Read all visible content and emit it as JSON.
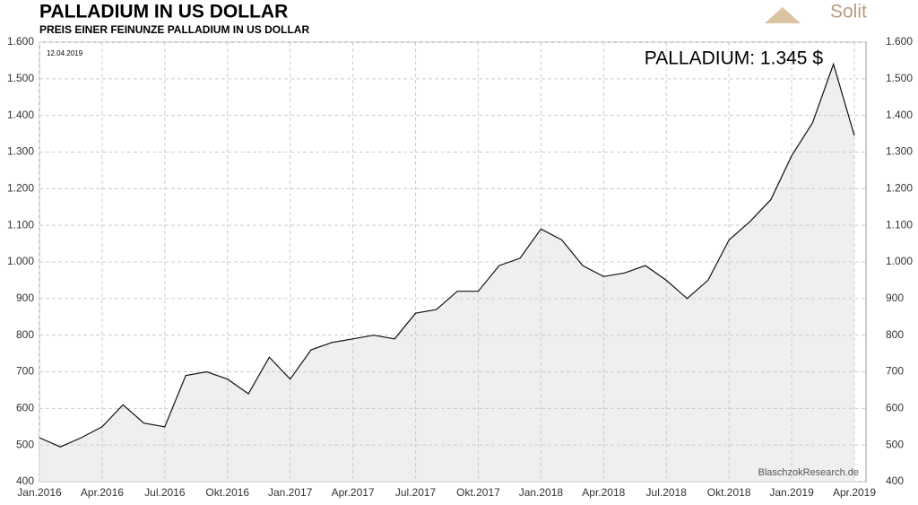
{
  "chart_data": {
    "type": "line",
    "title": "PALLADIUM  IN  US DOLLAR",
    "subtitle": "PREIS  EINER  FEINUNZE  PALLADIUM  IN  US DOLLAR",
    "date_note": "12.04.2019",
    "annotation": "PALLADIUM: 1.345 $",
    "source": "BlaschzokResearch.de",
    "logo": "Solit",
    "color": "#111111",
    "area_color": "#efefef",
    "grid": true,
    "x": [
      "2016-01",
      "2016-02",
      "2016-03",
      "2016-04",
      "2016-05",
      "2016-06",
      "2016-07",
      "2016-08",
      "2016-09",
      "2016-10",
      "2016-11",
      "2016-12",
      "2017-01",
      "2017-02",
      "2017-03",
      "2017-04",
      "2017-05",
      "2017-06",
      "2017-07",
      "2017-08",
      "2017-09",
      "2017-10",
      "2017-11",
      "2017-12",
      "2018-01",
      "2018-02",
      "2018-03",
      "2018-04",
      "2018-05",
      "2018-06",
      "2018-07",
      "2018-08",
      "2018-09",
      "2018-10",
      "2018-11",
      "2018-12",
      "2019-01",
      "2019-02",
      "2019-03",
      "2019-04"
    ],
    "values": [
      520,
      495,
      520,
      550,
      610,
      560,
      550,
      690,
      700,
      680,
      640,
      740,
      680,
      760,
      780,
      790,
      800,
      790,
      860,
      870,
      920,
      920,
      990,
      1010,
      1090,
      1060,
      990,
      960,
      970,
      990,
      950,
      900,
      950,
      1060,
      1110,
      1170,
      1290,
      1380,
      1540,
      1345
    ],
    "xlim": [
      "2016-01",
      "2019-04"
    ],
    "xticks": [
      {
        "value": "2016-01",
        "label": "Jan.2016"
      },
      {
        "value": "2016-04",
        "label": "Apr.2016"
      },
      {
        "value": "2016-07",
        "label": "Jul.2016"
      },
      {
        "value": "2016-10",
        "label": "Okt.2016"
      },
      {
        "value": "2017-01",
        "label": "Jan.2017"
      },
      {
        "value": "2017-04",
        "label": "Apr.2017"
      },
      {
        "value": "2017-07",
        "label": "Jul.2017"
      },
      {
        "value": "2017-10",
        "label": "Okt.2017"
      },
      {
        "value": "2018-01",
        "label": "Jan.2018"
      },
      {
        "value": "2018-04",
        "label": "Apr.2018"
      },
      {
        "value": "2018-07",
        "label": "Jul.2018"
      },
      {
        "value": "2018-10",
        "label": "Okt.2018"
      },
      {
        "value": "2019-01",
        "label": "Jan.2019"
      },
      {
        "value": "2019-04",
        "label": "Apr.2019"
      }
    ],
    "ylim": [
      400,
      1600
    ],
    "yticks": [
      400,
      500,
      600,
      700,
      800,
      900,
      {
        "value": 1000,
        "label": "1.000"
      },
      {
        "value": 1100,
        "label": "1.100"
      },
      {
        "value": 1200,
        "label": "1.200"
      },
      {
        "value": 1300,
        "label": "1.300"
      },
      {
        "value": 1400,
        "label": "1.400"
      },
      {
        "value": 1500,
        "label": "1.500"
      },
      {
        "value": 1600,
        "label": "1.600"
      }
    ]
  }
}
